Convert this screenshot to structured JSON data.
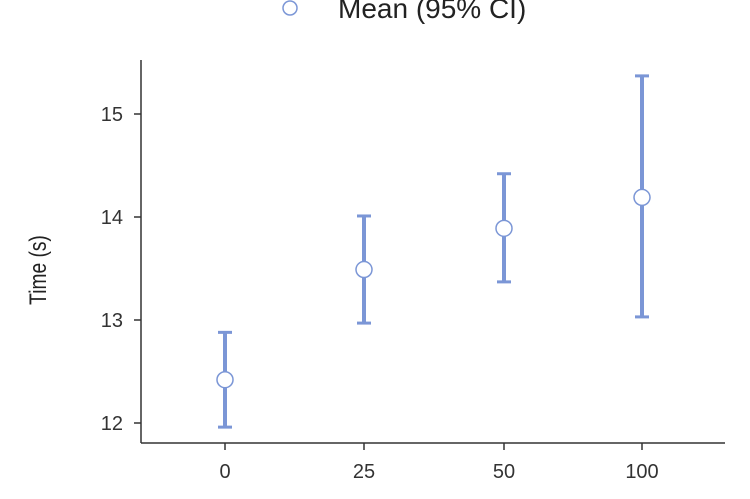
{
  "chart_data": {
    "type": "scatter",
    "title": "",
    "xlabel": "",
    "ylabel": "Time (s)",
    "categories": [
      "0",
      "25",
      "50",
      "100"
    ],
    "series": [
      {
        "name": "Mean (95% CI)",
        "mean": [
          12.42,
          13.49,
          13.89,
          14.19
        ],
        "ci_low": [
          11.96,
          12.97,
          13.37,
          13.03
        ],
        "ci_high": [
          12.88,
          14.01,
          14.42,
          15.37
        ]
      }
    ],
    "ylim": [
      11.9,
      15.5
    ],
    "yticks": [
      "12",
      "13",
      "14",
      "15"
    ],
    "grid": false,
    "legend_position": "top",
    "colors": {
      "errorbar": "#7b96d6",
      "marker_fill": "#ffffff",
      "axis": "#333333"
    }
  }
}
